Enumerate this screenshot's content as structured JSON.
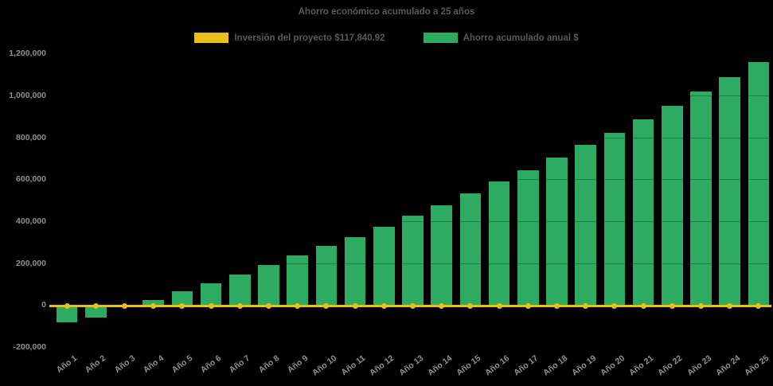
{
  "colors": {
    "background": "#000000",
    "bar_green": "#2dab63",
    "line_yellow": "#e9c019",
    "title_text": "#595959",
    "legend_text": "#595959",
    "axis_text": "#8f8f8f",
    "gridline_over_bars": "rgba(0,0,0,0.28)"
  },
  "chart_data": {
    "type": "bar",
    "title": "Ahorro económico acumulado a 25 años",
    "xlabel": "",
    "ylabel": "",
    "legend_position": "top",
    "grid": "subtle horizontal lines visible only over bars",
    "ylim": [
      -200000,
      1200000
    ],
    "ytick_step": 200000,
    "ytick_labels": [
      "-200,000",
      "0",
      "200,000",
      "400,000",
      "600,000",
      "800,000",
      "1,000,000",
      "1,200,000"
    ],
    "categories": [
      "Año 1",
      "Año 2",
      "Año 3",
      "Año 4",
      "Año 5",
      "Año 6",
      "Año 7",
      "Año 8",
      "Año 9",
      "Año 10",
      "Año 11",
      "Año 12",
      "Año 13",
      "Año 14",
      "Año 15",
      "Año 16",
      "Año 17",
      "Año 18",
      "Año 19",
      "Año 20",
      "Año 21",
      "Año 22",
      "Año 23",
      "Año 24",
      "Año 25"
    ],
    "series": [
      {
        "name": "Inversión del proyecto $117,840.92",
        "type": "line",
        "color": "#e9c019",
        "investment_value_shown_in_label": "$117,840.92",
        "plotted_constant_value": 0
      },
      {
        "name": "Ahorro acumulado anual $",
        "type": "bar",
        "color": "#2dab63",
        "values": [
          -81000,
          -60000,
          -12000,
          24000,
          66000,
          103000,
          145000,
          191000,
          235000,
          281000,
          325000,
          375000,
          425000,
          477000,
          533000,
          588000,
          644000,
          703000,
          764000,
          821000,
          887000,
          951000,
          1018000,
          1087000,
          1158000
        ]
      }
    ]
  }
}
